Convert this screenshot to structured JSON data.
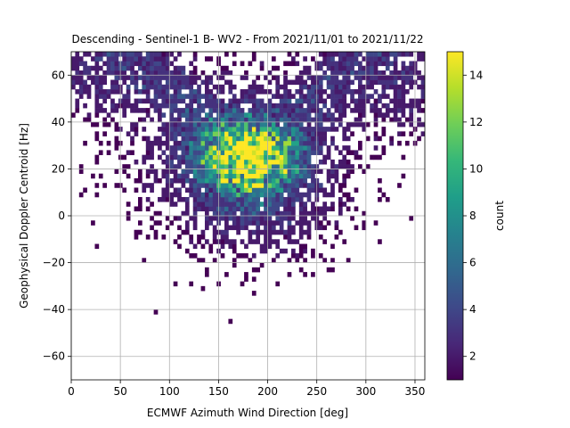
{
  "chart_data": {
    "type": "heatmap",
    "title": "Descending - Sentinel-1 B- WV2 - From 2021/11/01 to 2021/11/22",
    "xlabel": "ECMWF Azimuth Wind Direction [deg]",
    "ylabel": "Geophysical Doppler Centroid [Hz]",
    "xlim": [
      0,
      360
    ],
    "ylim": [
      -70,
      70
    ],
    "xticks": [
      0,
      50,
      100,
      150,
      200,
      250,
      300,
      350
    ],
    "yticks": [
      -60,
      -40,
      -20,
      0,
      20,
      40,
      60
    ],
    "grid": true,
    "colorbar": {
      "label": "count",
      "min": 1,
      "max": 15,
      "ticks": [
        2,
        4,
        6,
        8,
        10,
        12,
        14
      ],
      "colormap": "viridis"
    },
    "bin_width_x": 4,
    "bin_height_y": 2,
    "density_description": "V-shaped distribution: high counts near x≈150-210, y≈15-35 (peak ≈14-15 near x≈180, y≈25); sparse wings rising toward upper-left (x 0-60, y 40-70) and upper-right (x 300-360, y 40-70); sparse tail down to y≈-25 around x≈190-250"
  },
  "colors": {
    "grid": "#b0b0b0",
    "viridis": [
      "#440154",
      "#482878",
      "#3e4989",
      "#31688e",
      "#26828e",
      "#1f9e89",
      "#35b779",
      "#6ece58",
      "#b5de2b",
      "#fde725"
    ]
  }
}
